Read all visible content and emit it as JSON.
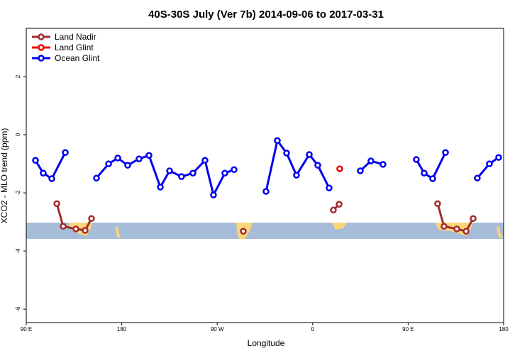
{
  "chart_data": {
    "type": "line",
    "title": "40S-30S July (Ver 7b)   2014-09-06 to 2017-03-31",
    "x_label": "Longitude",
    "y_label": "XCO2 - MLO trend (ppm)",
    "xlim": [
      90,
      540
    ],
    "xticks": [
      {
        "value": 90,
        "label": "90 E"
      },
      {
        "value": 180,
        "label": "180"
      },
      {
        "value": 270,
        "label": "90 W"
      },
      {
        "value": 360,
        "label": "0"
      },
      {
        "value": 450,
        "label": "90 E"
      },
      {
        "value": 540,
        "label": "180"
      }
    ],
    "ylim": [
      -6.46,
      3.66
    ],
    "yticks": [
      -6,
      -4,
      -2,
      0,
      2
    ],
    "legend": "top-left",
    "series": [
      {
        "name": "Land Nadir",
        "color": "#a52a2a",
        "x": [
          118.8,
          124.8,
          136.8,
          145.5,
          151.5,
          null,
          294.6,
          null,
          379.5,
          384.9,
          null,
          477.8,
          483.8,
          495.9,
          504.6,
          511.3
        ],
        "values": [
          -2.37,
          -3.15,
          -3.24,
          -3.29,
          -2.88,
          null,
          -3.32,
          null,
          -2.59,
          -2.39,
          null,
          -2.37,
          -3.15,
          -3.24,
          -3.32,
          -2.88
        ]
      },
      {
        "name": "Land Glint",
        "color": "#ee0000",
        "x": [
          385.5
        ],
        "values": [
          -1.17
        ]
      },
      {
        "name": "Ocean Glint",
        "color": "#0000ee",
        "x": [
          98.7,
          106.0,
          114.1,
          126.8,
          null,
          156.2,
          167.6,
          176.3,
          185.6,
          196.3,
          205.7,
          216.4,
          225.1,
          236.4,
          247.1,
          258.5,
          266.5,
          277.2,
          285.9,
          null,
          316.0,
          326.7,
          335.4,
          344.7,
          356.8,
          364.8,
          375.5,
          null,
          404.9,
          414.9,
          426.3,
          null,
          457.7,
          465.1,
          473.1,
          485.2,
          null,
          515.2,
          526.6,
          535.3
        ],
        "values": [
          -0.88,
          -1.32,
          -1.51,
          -0.61,
          null,
          -1.49,
          -1.0,
          -0.8,
          -1.05,
          -0.83,
          -0.71,
          -1.8,
          -1.24,
          -1.44,
          -1.32,
          -0.88,
          -2.07,
          -1.32,
          -1.2,
          null,
          -1.95,
          -0.2,
          -0.63,
          -1.39,
          -0.68,
          -1.05,
          -1.83,
          null,
          -1.24,
          -0.9,
          -1.02,
          null,
          -0.85,
          -1.32,
          -1.51,
          -0.61,
          null,
          -1.49,
          -1.0,
          -0.78
        ]
      }
    ]
  }
}
